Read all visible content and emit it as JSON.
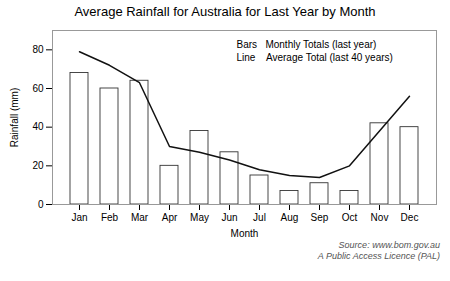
{
  "chart_data": {
    "type": "bar",
    "title": "Average Rainfall for Australia for Last Year by Month",
    "x_label": "Month",
    "y_label": "Rainfall (mm)",
    "categories": [
      "Jan",
      "Feb",
      "Mar",
      "Apr",
      "May",
      "Jun",
      "Jul",
      "Aug",
      "Sep",
      "Oct",
      "Nov",
      "Dec"
    ],
    "series": [
      {
        "type": "bar",
        "color": "white",
        "values": [
          68,
          60,
          64,
          20,
          38,
          27,
          15,
          7,
          11,
          7,
          42,
          40
        ]
      },
      {
        "type": "line",
        "color": "#111111",
        "values": [
          79,
          72,
          63,
          30,
          27,
          23,
          18,
          15,
          14,
          20,
          38,
          56
        ]
      }
    ],
    "ylim": [
      0,
      90
    ],
    "yticks": [
      0,
      20,
      40,
      60,
      80
    ],
    "annotations": [
      "Bars   Monthly Totals (last year)",
      "Line    Average Total (last 40 years)",
      "Source: www.bom.gov.au\nA Public Access Licence (PAL)"
    ]
  }
}
